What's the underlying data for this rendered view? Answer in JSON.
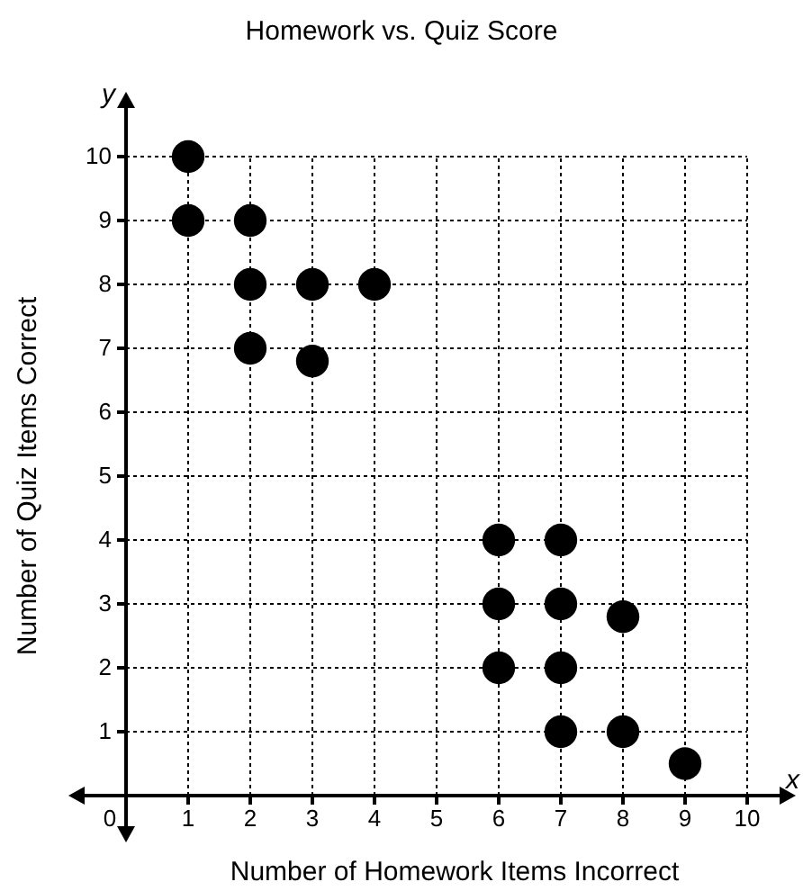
{
  "chart_data": {
    "type": "scatter",
    "title": "Homework vs. Quiz Score",
    "xlabel": "Number of Homework Items Incorrect",
    "ylabel": "Number of Quiz Items Correct",
    "annotations": [
      "x",
      "y"
    ],
    "xlim": [
      0,
      10
    ],
    "ylim": [
      0,
      10
    ],
    "xticks": [
      0,
      1,
      2,
      3,
      4,
      5,
      6,
      7,
      8,
      9,
      10
    ],
    "yticks": [
      1,
      2,
      3,
      4,
      5,
      6,
      7,
      8,
      9,
      10
    ],
    "grid": true,
    "marker": "circle",
    "line_style": "dotted",
    "series": [
      {
        "color": "#000000",
        "x": [
          1,
          1,
          2,
          2,
          3,
          4,
          2,
          3,
          6,
          7,
          6,
          7,
          8,
          6,
          7,
          7,
          8,
          9
        ],
        "values": [
          10,
          9,
          9,
          8,
          8,
          8,
          7,
          6.8,
          4,
          4,
          3,
          3,
          2.8,
          2,
          2,
          1,
          1,
          0.5
        ]
      }
    ]
  }
}
